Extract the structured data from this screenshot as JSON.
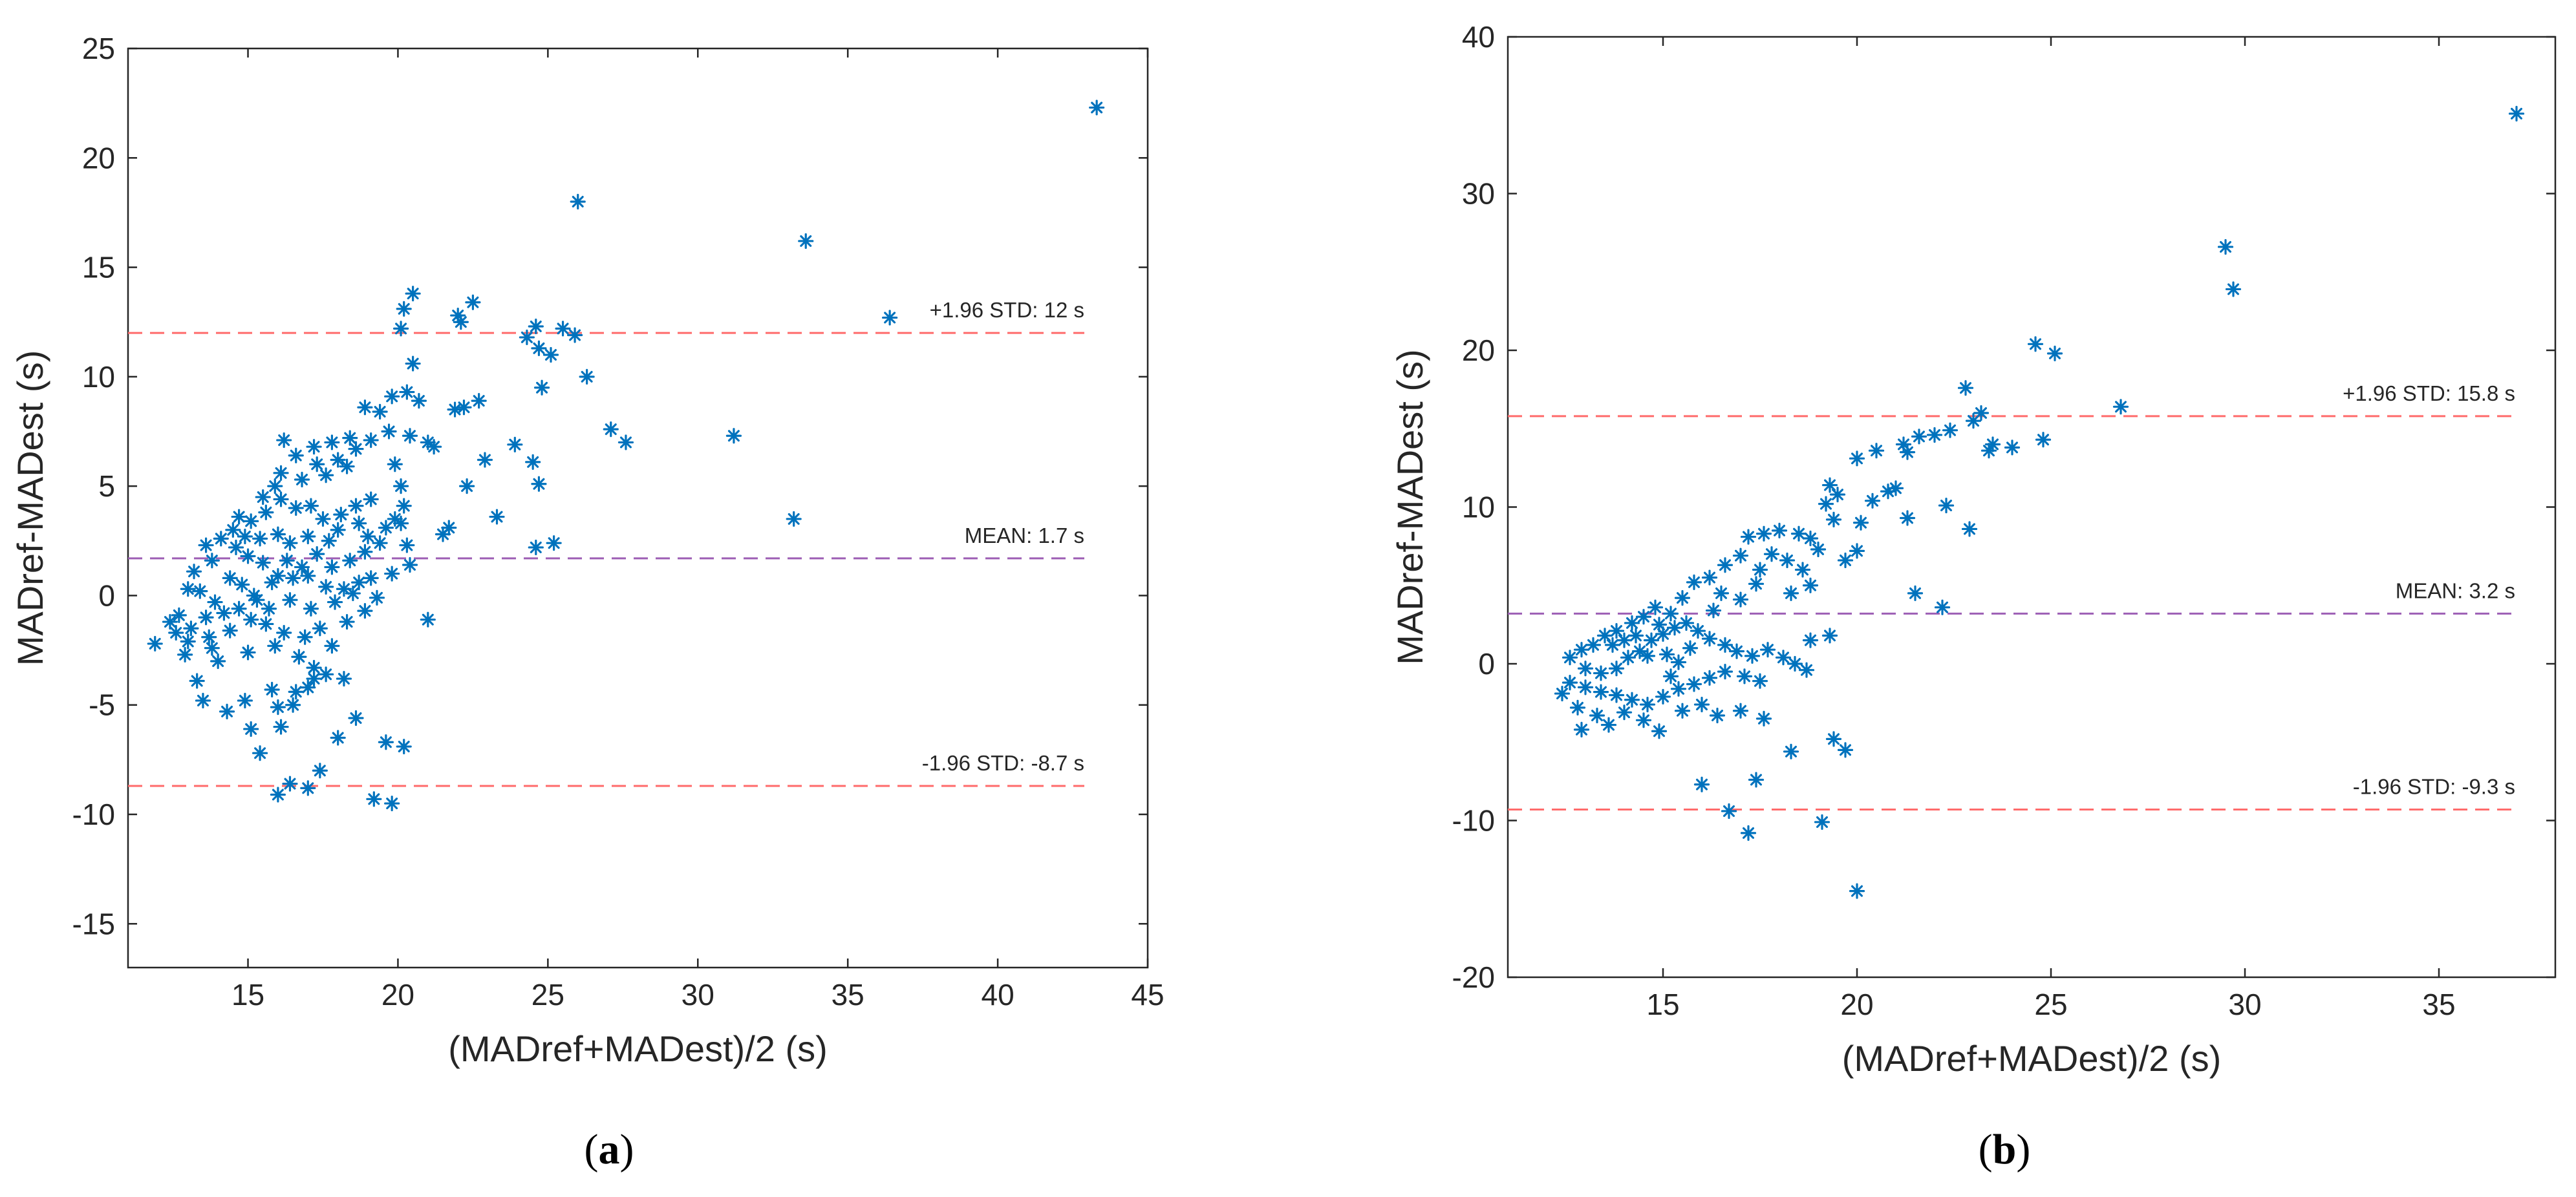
{
  "chart_data": [
    {
      "type": "scatter",
      "panel_label": "a",
      "xlabel": "(MADref+MADest)/2 (s)",
      "ylabel": "MADref-MADest (s)",
      "xlim": [
        11,
        45
      ],
      "ylim": [
        -17,
        25
      ],
      "xticks": [
        15,
        20,
        25,
        30,
        35,
        40,
        45
      ],
      "yticks": [
        -15,
        -10,
        -5,
        0,
        5,
        10,
        15,
        20,
        25
      ],
      "marker_color": "#0072bd",
      "limit_line_color": "#ff6b6b",
      "mean_line_color": "#9d5fb5",
      "reference_lines": [
        {
          "kind": "upper",
          "y": 12,
          "label": "+1.96 STD: 12 s"
        },
        {
          "kind": "mean",
          "y": 1.7,
          "label": "MEAN: 1.7 s"
        },
        {
          "kind": "lower",
          "y": -8.7,
          "label": "-1.96 STD: -8.7 s"
        }
      ],
      "points": [
        [
          43.3,
          22.3
        ],
        [
          26.0,
          18.0
        ],
        [
          33.6,
          16.2
        ],
        [
          36.4,
          12.7
        ],
        [
          31.2,
          7.3
        ],
        [
          33.2,
          3.5
        ],
        [
          27.1,
          7.6
        ],
        [
          27.6,
          7.0
        ],
        [
          25.5,
          12.2
        ],
        [
          25.9,
          11.9
        ],
        [
          24.6,
          12.3
        ],
        [
          24.3,
          11.8
        ],
        [
          24.7,
          11.3
        ],
        [
          25.1,
          11.0
        ],
        [
          26.3,
          10.0
        ],
        [
          24.8,
          9.5
        ],
        [
          23.9,
          6.9
        ],
        [
          24.5,
          6.1
        ],
        [
          24.7,
          5.1
        ],
        [
          24.6,
          2.2
        ],
        [
          25.2,
          2.4
        ],
        [
          22.7,
          8.9
        ],
        [
          22.5,
          13.4
        ],
        [
          22.0,
          12.8
        ],
        [
          22.1,
          12.5
        ],
        [
          20.5,
          13.8
        ],
        [
          20.2,
          13.1
        ],
        [
          20.1,
          12.2
        ],
        [
          22.2,
          8.6
        ],
        [
          22.9,
          6.2
        ],
        [
          22.3,
          5.0
        ],
        [
          23.3,
          3.6
        ],
        [
          21.7,
          3.1
        ],
        [
          21.2,
          6.8
        ],
        [
          20.5,
          10.6
        ],
        [
          20.3,
          9.3
        ],
        [
          19.8,
          9.1
        ],
        [
          20.7,
          8.9
        ],
        [
          21.0,
          7.0
        ],
        [
          20.4,
          7.3
        ],
        [
          19.9,
          6.0
        ],
        [
          20.1,
          5.0
        ],
        [
          20.2,
          4.1
        ],
        [
          19.9,
          3.5
        ],
        [
          20.3,
          2.3
        ],
        [
          20.4,
          1.4
        ],
        [
          21.0,
          -1.1
        ],
        [
          20.2,
          -6.9
        ],
        [
          19.6,
          -6.7
        ],
        [
          19.8,
          -9.5
        ],
        [
          19.2,
          -9.3
        ],
        [
          17.0,
          -8.8
        ],
        [
          16.4,
          -8.6
        ],
        [
          16.0,
          -9.1
        ],
        [
          15.4,
          -7.2
        ],
        [
          17.4,
          -8.0
        ],
        [
          18.0,
          -6.5
        ],
        [
          18.6,
          -5.6
        ],
        [
          16.5,
          -5.0
        ],
        [
          15.8,
          -4.3
        ],
        [
          14.9,
          -4.8
        ],
        [
          14.3,
          -5.3
        ],
        [
          13.5,
          -4.8
        ],
        [
          17.0,
          -4.2
        ],
        [
          17.6,
          -3.6
        ],
        [
          17.2,
          -3.3
        ],
        [
          18.2,
          -3.8
        ],
        [
          15.1,
          -6.1
        ],
        [
          16.1,
          -6.0
        ],
        [
          16.6,
          -4.4
        ],
        [
          15.0,
          -2.6
        ],
        [
          14.0,
          -3.0
        ],
        [
          13.8,
          -2.4
        ],
        [
          13.0,
          -2.1
        ],
        [
          12.4,
          -1.2
        ],
        [
          11.9,
          -2.2
        ],
        [
          12.7,
          -0.9
        ],
        [
          12.9,
          -2.7
        ],
        [
          13.3,
          -3.9
        ],
        [
          13.6,
          -1.0
        ],
        [
          13.9,
          -0.3
        ],
        [
          14.2,
          -0.8
        ],
        [
          14.7,
          -0.6
        ],
        [
          15.3,
          -0.2
        ],
        [
          15.6,
          -1.3
        ],
        [
          15.9,
          -2.3
        ],
        [
          16.2,
          -1.7
        ],
        [
          16.9,
          -1.9
        ],
        [
          17.4,
          -1.5
        ],
        [
          17.8,
          -2.3
        ],
        [
          18.3,
          -1.2
        ],
        [
          18.9,
          -0.7
        ],
        [
          19.3,
          -0.1
        ],
        [
          19.1,
          0.8
        ],
        [
          18.7,
          0.6
        ],
        [
          18.2,
          0.3
        ],
        [
          17.6,
          0.4
        ],
        [
          17.0,
          0.9
        ],
        [
          16.5,
          0.8
        ],
        [
          16.0,
          0.9
        ],
        [
          15.5,
          1.5
        ],
        [
          15.0,
          1.8
        ],
        [
          14.6,
          2.2
        ],
        [
          14.1,
          2.6
        ],
        [
          13.6,
          2.3
        ],
        [
          13.2,
          1.1
        ],
        [
          13.0,
          0.3
        ],
        [
          13.4,
          0.2
        ],
        [
          14.4,
          0.8
        ],
        [
          14.8,
          0.5
        ],
        [
          15.2,
          0.0
        ],
        [
          15.8,
          0.6
        ],
        [
          16.3,
          1.6
        ],
        [
          16.8,
          1.3
        ],
        [
          17.3,
          1.9
        ],
        [
          17.8,
          1.3
        ],
        [
          18.4,
          1.6
        ],
        [
          18.9,
          2.0
        ],
        [
          19.4,
          2.4
        ],
        [
          19.6,
          3.1
        ],
        [
          19.1,
          4.4
        ],
        [
          18.6,
          4.1
        ],
        [
          18.1,
          3.7
        ],
        [
          17.5,
          3.5
        ],
        [
          17.1,
          4.1
        ],
        [
          16.6,
          4.0
        ],
        [
          16.1,
          4.4
        ],
        [
          15.6,
          3.8
        ],
        [
          15.1,
          3.4
        ],
        [
          14.7,
          3.6
        ],
        [
          14.5,
          3.0
        ],
        [
          14.9,
          2.7
        ],
        [
          15.4,
          2.6
        ],
        [
          16.0,
          2.8
        ],
        [
          16.4,
          2.4
        ],
        [
          17.0,
          2.7
        ],
        [
          17.7,
          2.5
        ],
        [
          18.0,
          3.0
        ],
        [
          18.7,
          3.3
        ],
        [
          19.0,
          2.7
        ],
        [
          16.1,
          5.6
        ],
        [
          16.8,
          5.3
        ],
        [
          17.3,
          6.0
        ],
        [
          18.0,
          6.2
        ],
        [
          18.6,
          6.7
        ],
        [
          19.1,
          7.1
        ],
        [
          19.7,
          7.5
        ],
        [
          19.4,
          8.4
        ],
        [
          18.9,
          8.6
        ],
        [
          18.4,
          7.2
        ],
        [
          17.8,
          7.0
        ],
        [
          17.2,
          6.8
        ],
        [
          16.6,
          6.4
        ],
        [
          16.2,
          7.1
        ],
        [
          17.6,
          5.5
        ],
        [
          18.3,
          5.9
        ],
        [
          15.9,
          5.0
        ],
        [
          15.5,
          4.5
        ],
        [
          13.8,
          1.6
        ],
        [
          12.6,
          -1.7
        ],
        [
          13.1,
          -1.5
        ],
        [
          13.7,
          -1.9
        ],
        [
          14.4,
          -1.6
        ],
        [
          15.1,
          -1.1
        ],
        [
          15.7,
          -0.6
        ],
        [
          16.4,
          -0.2
        ],
        [
          17.1,
          -0.6
        ],
        [
          17.9,
          -0.3
        ],
        [
          18.5,
          0.1
        ],
        [
          19.8,
          1.0
        ],
        [
          20.1,
          3.3
        ],
        [
          21.5,
          2.8
        ],
        [
          21.9,
          8.5
        ],
        [
          16.0,
          -5.1
        ],
        [
          17.2,
          -3.8
        ],
        [
          16.7,
          -2.8
        ]
      ]
    },
    {
      "type": "scatter",
      "panel_label": "b",
      "xlabel": "(MADref+MADest)/2 (s)",
      "ylabel": "MADref-MADest (s)",
      "xlim": [
        11,
        38
      ],
      "ylim": [
        -20,
        40
      ],
      "xticks": [
        15,
        20,
        25,
        30,
        35
      ],
      "yticks": [
        -20,
        -10,
        0,
        10,
        20,
        30,
        40
      ],
      "marker_color": "#0072bd",
      "limit_line_color": "#ff6b6b",
      "mean_line_color": "#9d5fb5",
      "reference_lines": [
        {
          "kind": "upper",
          "y": 15.8,
          "label": "+1.96 STD: 15.8 s"
        },
        {
          "kind": "mean",
          "y": 3.2,
          "label": "MEAN: 3.2 s"
        },
        {
          "kind": "lower",
          "y": -9.3,
          "label": "-1.96 STD: -9.3 s"
        }
      ],
      "points": [
        [
          37.0,
          35.1
        ],
        [
          29.5,
          26.6
        ],
        [
          29.7,
          23.9
        ],
        [
          24.6,
          20.4
        ],
        [
          25.1,
          19.8
        ],
        [
          22.8,
          17.6
        ],
        [
          26.8,
          16.4
        ],
        [
          23.2,
          16.0
        ],
        [
          23.0,
          15.5
        ],
        [
          22.4,
          14.9
        ],
        [
          22.0,
          14.6
        ],
        [
          21.6,
          14.5
        ],
        [
          24.8,
          14.3
        ],
        [
          23.5,
          14.0
        ],
        [
          24.0,
          13.8
        ],
        [
          23.4,
          13.6
        ],
        [
          21.2,
          14.0
        ],
        [
          21.3,
          13.5
        ],
        [
          20.5,
          13.6
        ],
        [
          20.0,
          13.1
        ],
        [
          22.3,
          10.1
        ],
        [
          22.9,
          8.6
        ],
        [
          21.0,
          11.2
        ],
        [
          20.8,
          11.0
        ],
        [
          20.4,
          10.4
        ],
        [
          21.3,
          9.3
        ],
        [
          20.1,
          9.0
        ],
        [
          20.0,
          7.2
        ],
        [
          19.3,
          11.4
        ],
        [
          19.5,
          10.8
        ],
        [
          19.2,
          10.2
        ],
        [
          19.4,
          9.2
        ],
        [
          18.8,
          8.0
        ],
        [
          18.5,
          8.3
        ],
        [
          18.0,
          8.5
        ],
        [
          17.6,
          8.3
        ],
        [
          17.2,
          8.1
        ],
        [
          17.8,
          7.0
        ],
        [
          18.2,
          6.6
        ],
        [
          17.5,
          6.0
        ],
        [
          17.0,
          6.9
        ],
        [
          16.6,
          6.3
        ],
        [
          16.2,
          5.5
        ],
        [
          15.8,
          5.2
        ],
        [
          16.5,
          4.5
        ],
        [
          17.0,
          4.1
        ],
        [
          18.8,
          5.0
        ],
        [
          18.3,
          4.5
        ],
        [
          19.7,
          6.6
        ],
        [
          19.0,
          7.3
        ],
        [
          18.6,
          6.0
        ],
        [
          17.4,
          5.1
        ],
        [
          15.5,
          4.2
        ],
        [
          15.2,
          3.2
        ],
        [
          14.8,
          3.6
        ],
        [
          14.5,
          3.0
        ],
        [
          14.2,
          2.6
        ],
        [
          13.8,
          2.1
        ],
        [
          13.5,
          1.8
        ],
        [
          13.2,
          1.2
        ],
        [
          12.9,
          0.9
        ],
        [
          12.6,
          0.4
        ],
        [
          13.0,
          -0.3
        ],
        [
          13.4,
          -0.6
        ],
        [
          13.8,
          -0.3
        ],
        [
          14.1,
          0.4
        ],
        [
          14.4,
          0.8
        ],
        [
          14.7,
          1.5
        ],
        [
          15.0,
          1.9
        ],
        [
          15.3,
          2.3
        ],
        [
          15.6,
          2.6
        ],
        [
          15.9,
          2.1
        ],
        [
          16.2,
          1.6
        ],
        [
          16.6,
          1.2
        ],
        [
          16.9,
          0.8
        ],
        [
          17.3,
          0.5
        ],
        [
          17.7,
          0.9
        ],
        [
          18.1,
          0.4
        ],
        [
          18.4,
          0.0
        ],
        [
          18.7,
          -0.4
        ],
        [
          17.5,
          -1.1
        ],
        [
          17.1,
          -0.8
        ],
        [
          16.6,
          -0.5
        ],
        [
          16.2,
          -0.9
        ],
        [
          15.8,
          -1.3
        ],
        [
          15.4,
          -1.6
        ],
        [
          15.0,
          -2.1
        ],
        [
          14.6,
          -2.6
        ],
        [
          14.2,
          -2.3
        ],
        [
          13.8,
          -2.0
        ],
        [
          13.4,
          -1.8
        ],
        [
          13.0,
          -1.5
        ],
        [
          12.6,
          -1.2
        ],
        [
          12.4,
          -1.9
        ],
        [
          12.8,
          -2.8
        ],
        [
          13.3,
          -3.3
        ],
        [
          13.6,
          -3.9
        ],
        [
          12.9,
          -4.2
        ],
        [
          14.0,
          -3.1
        ],
        [
          14.5,
          -3.6
        ],
        [
          14.9,
          -4.3
        ],
        [
          15.5,
          -3.0
        ],
        [
          16.0,
          -2.6
        ],
        [
          16.4,
          -3.3
        ],
        [
          17.0,
          -3.0
        ],
        [
          17.6,
          -3.5
        ],
        [
          18.3,
          -5.6
        ],
        [
          16.0,
          -7.7
        ],
        [
          16.7,
          -9.4
        ],
        [
          17.4,
          -7.4
        ],
        [
          17.2,
          -10.8
        ],
        [
          19.1,
          -10.1
        ],
        [
          19.4,
          -4.8
        ],
        [
          19.7,
          -5.5
        ],
        [
          20.0,
          -14.5
        ],
        [
          19.3,
          1.8
        ],
        [
          18.8,
          1.5
        ],
        [
          22.2,
          3.6
        ],
        [
          21.5,
          4.5
        ],
        [
          14.6,
          0.5
        ],
        [
          14.3,
          1.8
        ],
        [
          15.1,
          0.6
        ],
        [
          15.4,
          0.1
        ],
        [
          15.7,
          1.0
        ],
        [
          13.7,
          1.2
        ],
        [
          14.9,
          2.5
        ],
        [
          16.3,
          3.4
        ],
        [
          15.2,
          -0.8
        ],
        [
          14.0,
          1.5
        ]
      ]
    }
  ]
}
